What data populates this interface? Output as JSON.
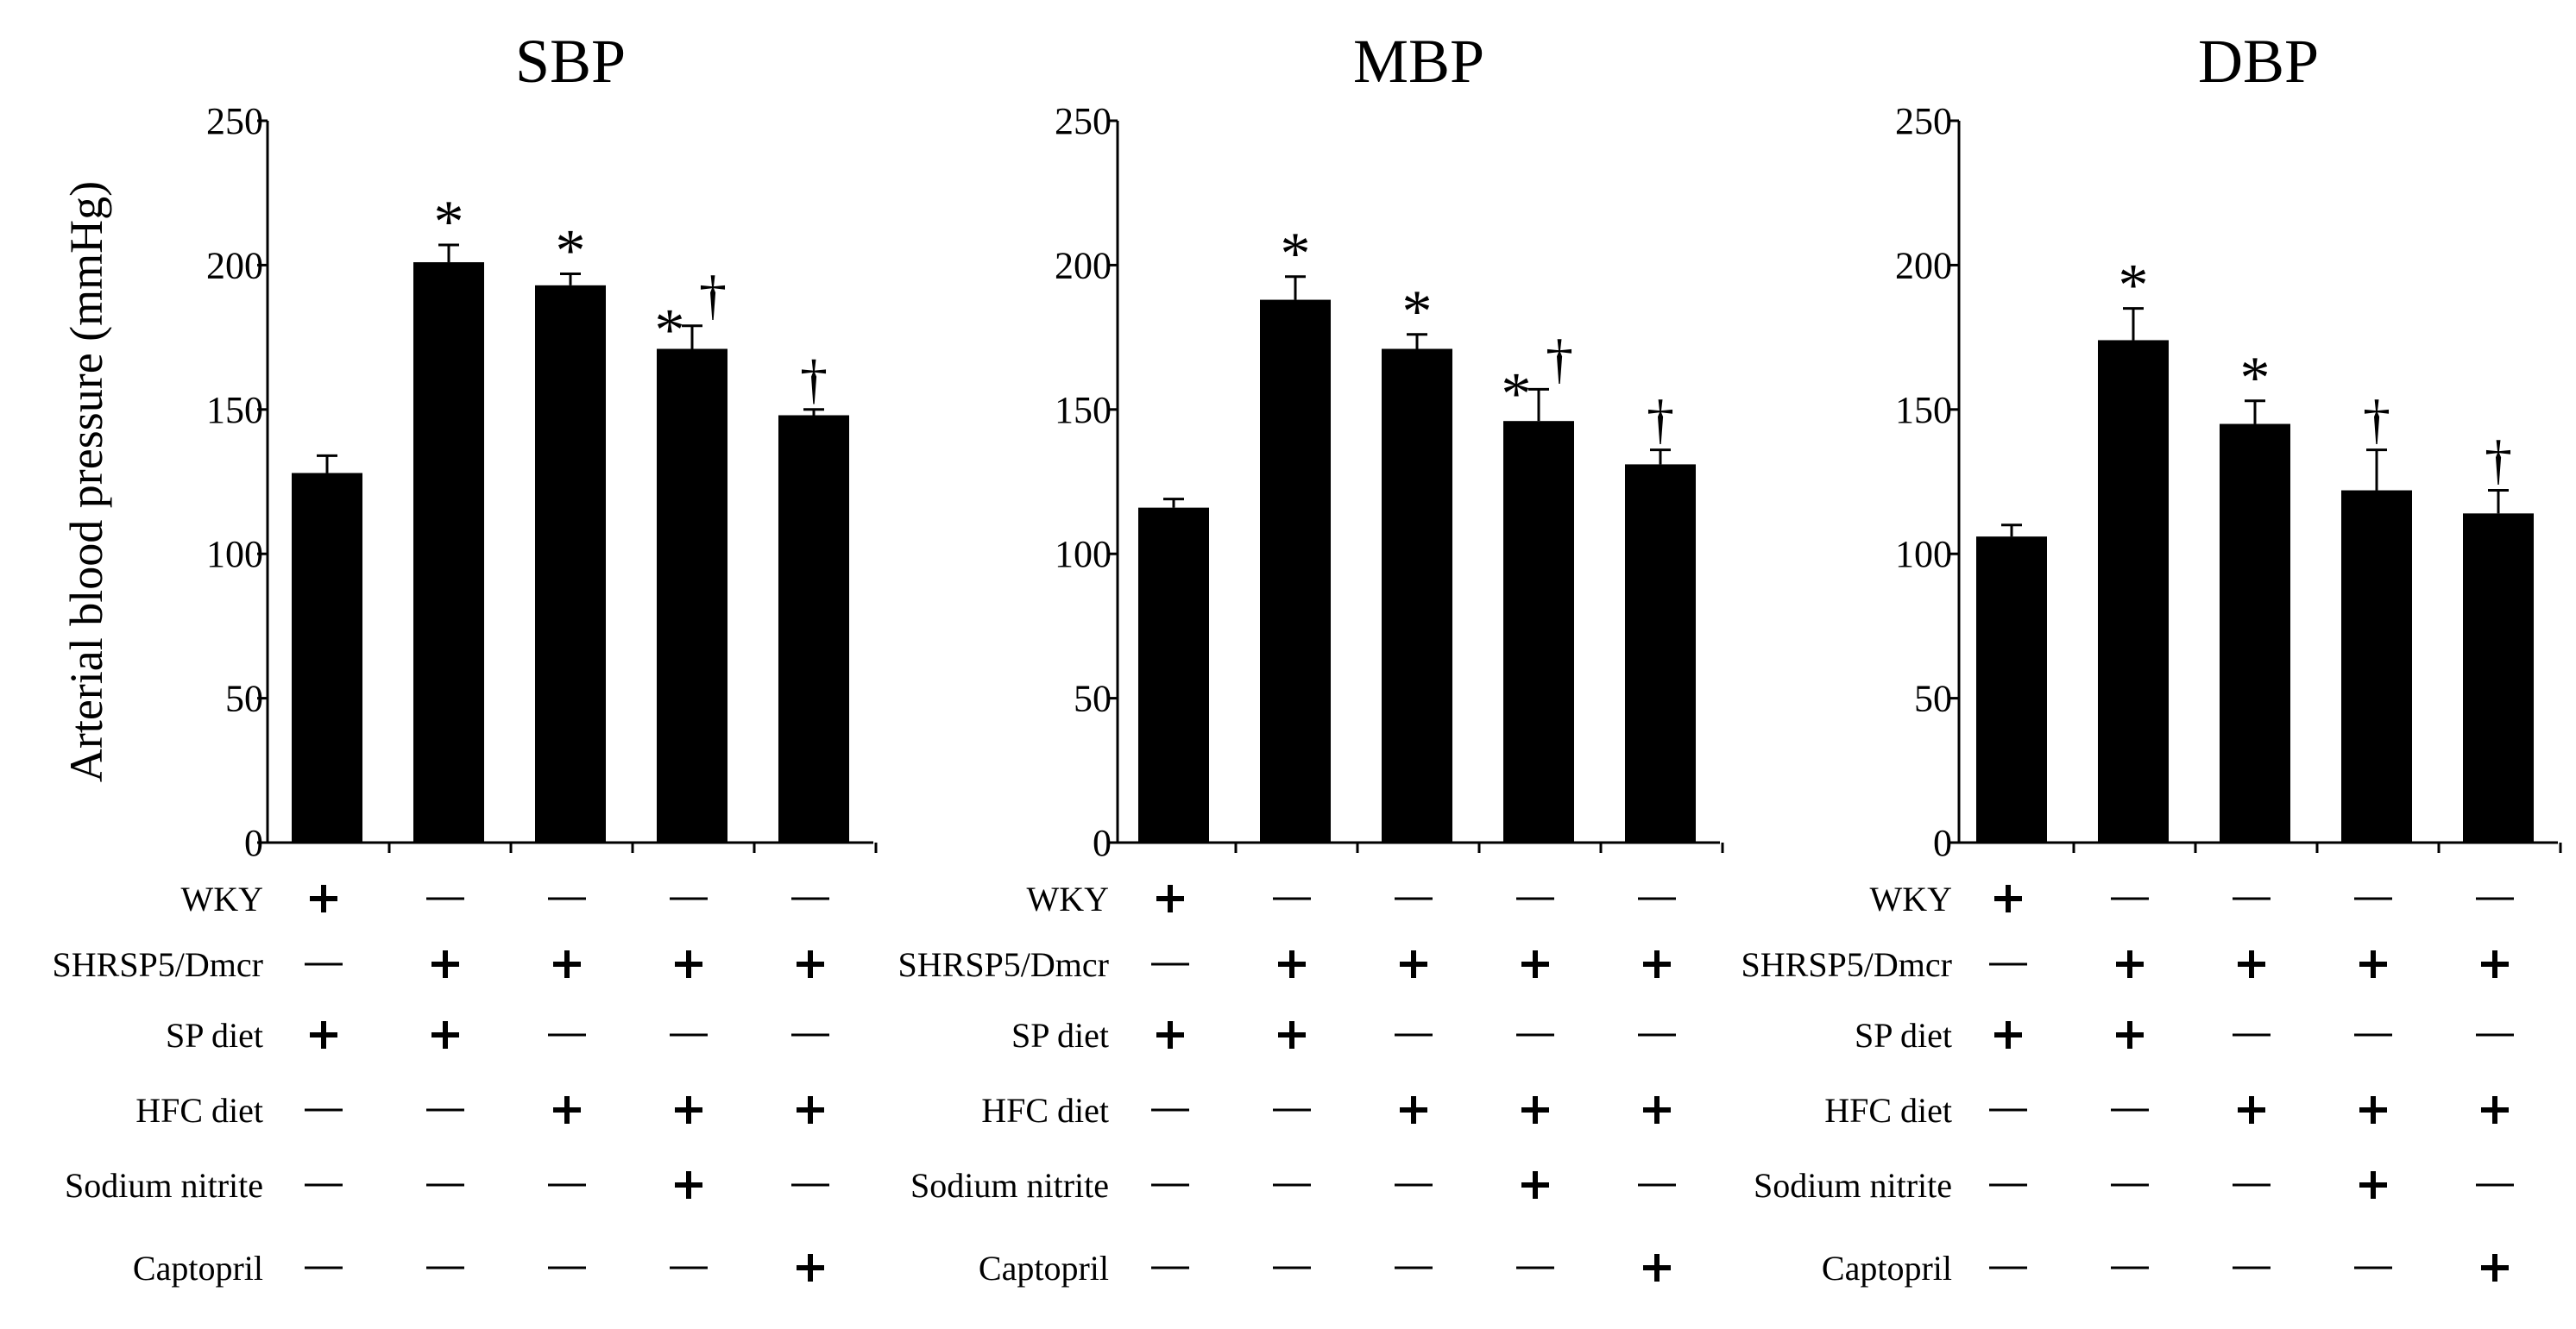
{
  "chart_data": [
    {
      "type": "bar",
      "title": "SBP",
      "ylabel": "Arterial blood pressure (mmHg)",
      "ylim": [
        0,
        250
      ],
      "yticks": [
        0,
        50,
        100,
        150,
        200,
        250
      ],
      "values": [
        128,
        201,
        193,
        171,
        148
      ],
      "errors": [
        6,
        6,
        4,
        8,
        2
      ],
      "annotations": [
        [],
        [
          "*"
        ],
        [
          "*"
        ],
        [
          "*",
          "†"
        ],
        [
          "†"
        ]
      ]
    },
    {
      "type": "bar",
      "title": "MBP",
      "ylabel": "",
      "ylim": [
        0,
        250
      ],
      "yticks": [
        0,
        50,
        100,
        150,
        200,
        250
      ],
      "values": [
        116,
        188,
        171,
        146,
        131
      ],
      "errors": [
        3,
        8,
        5,
        11,
        5
      ],
      "annotations": [
        [],
        [
          "*"
        ],
        [
          "*"
        ],
        [
          "*",
          "†"
        ],
        [
          "†"
        ]
      ]
    },
    {
      "type": "bar",
      "title": "DBP",
      "ylabel": "",
      "ylim": [
        0,
        250
      ],
      "yticks": [
        0,
        50,
        100,
        150,
        200,
        250
      ],
      "values": [
        106,
        174,
        145,
        122,
        114
      ],
      "errors": [
        4,
        11,
        8,
        14,
        8
      ],
      "annotations": [
        [],
        [
          "*"
        ],
        [
          "*"
        ],
        [
          "†"
        ],
        [
          "†"
        ]
      ]
    }
  ],
  "condition_table": {
    "rows": [
      {
        "label": "WKY",
        "marks": [
          "+",
          "—",
          "—",
          "—",
          "—"
        ]
      },
      {
        "label": "SHRSP5/Dmcr",
        "marks": [
          "—",
          "+",
          "+",
          "+",
          "+"
        ]
      },
      {
        "label": "SP diet",
        "marks": [
          "+",
          "+",
          "—",
          "—",
          "—"
        ]
      },
      {
        "label": "HFC  diet",
        "marks": [
          "—",
          "—",
          "+",
          "+",
          "+"
        ]
      },
      {
        "label": "Sodium nitrite",
        "marks": [
          "—",
          "—",
          "—",
          "+",
          "—"
        ]
      },
      {
        "label": "Captopril",
        "marks": [
          "—",
          "—",
          "—",
          "—",
          "+"
        ]
      }
    ]
  },
  "colors": {
    "bar": "#000000",
    "background": "#ffffff"
  }
}
